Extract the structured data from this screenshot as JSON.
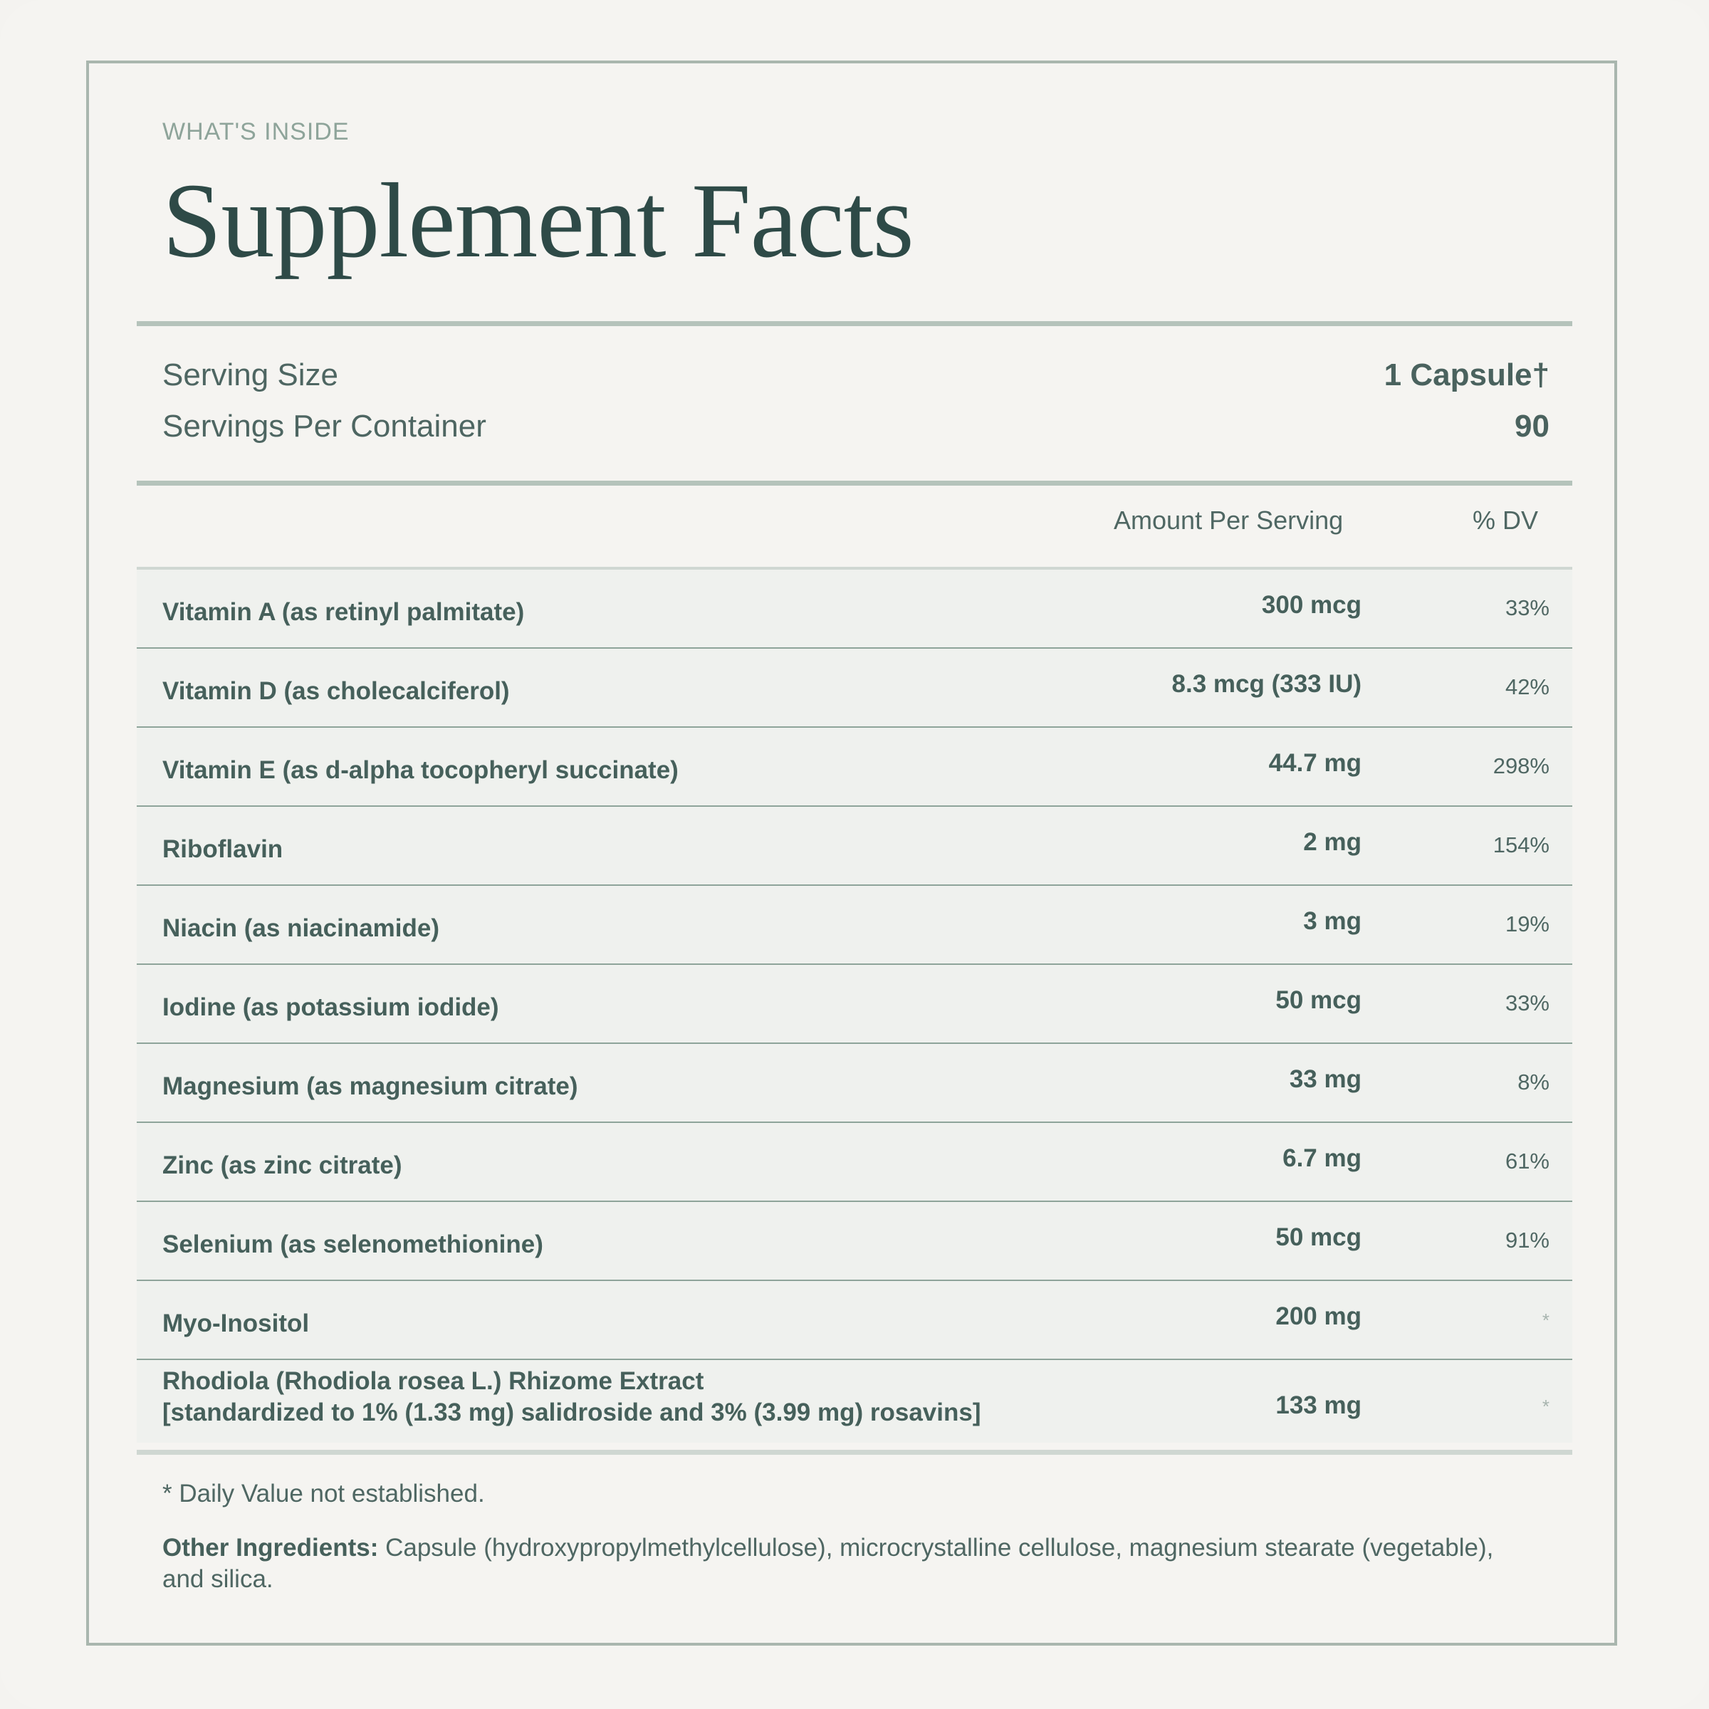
{
  "eyebrow": "WHAT'S INSIDE",
  "title": "Supplement Facts",
  "serving": {
    "size_label": "Serving Size",
    "size_value": "1 Capsule†",
    "per_container_label": "Servings Per Container",
    "per_container_value": "90"
  },
  "columns": {
    "amount": "Amount Per Serving",
    "dv": "% DV"
  },
  "rows": [
    {
      "name": "Vitamin A (as retinyl palmitate)",
      "amount": "300 mcg",
      "dv": "33%"
    },
    {
      "name": "Vitamin D (as cholecalciferol)",
      "amount": "8.3 mcg (333 IU)",
      "dv": "42%"
    },
    {
      "name": "Vitamin E (as d-alpha tocopheryl succinate)",
      "amount": "44.7 mg",
      "dv": "298%"
    },
    {
      "name": "Riboflavin",
      "amount": "2 mg",
      "dv": "154%"
    },
    {
      "name": "Niacin (as niacinamide)",
      "amount": "3 mg",
      "dv": "19%"
    },
    {
      "name": "Iodine (as potassium iodide)",
      "amount": "50 mcg",
      "dv": "33%"
    },
    {
      "name": "Magnesium (as magnesium citrate)",
      "amount": "33 mg",
      "dv": "8%"
    },
    {
      "name": "Zinc (as zinc citrate)",
      "amount": "6.7 mg",
      "dv": "61%"
    },
    {
      "name": "Selenium (as selenomethionine)",
      "amount": "50 mcg",
      "dv": "91%"
    },
    {
      "name": "Myo-Inositol",
      "amount": "200 mg",
      "dv": "*"
    },
    {
      "name": "Rhodiola (Rhodiola rosea L.) Rhizome Extract",
      "name_line2": "[standardized to 1% (1.33 mg) salidroside and 3% (3.99 mg) rosavins]",
      "amount": "133 mg",
      "dv": "*"
    }
  ],
  "footnote": "* Daily Value not established.",
  "other_ingredients": {
    "label": "Other Ingredients:",
    "text": " Capsule (hydroxypropylmethylcellulose), microcrystalline cellulose, magnesium stearate (vegetable), and silica."
  }
}
